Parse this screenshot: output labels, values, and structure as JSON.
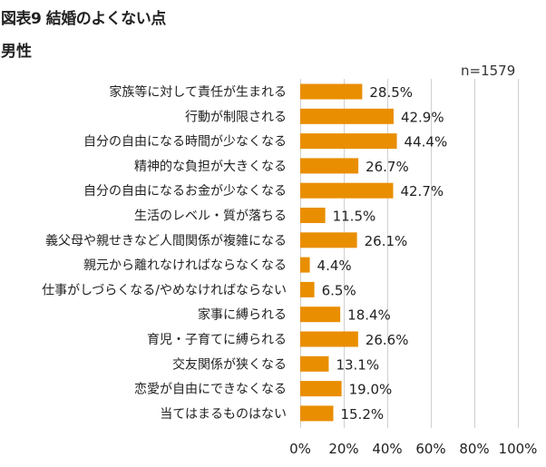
{
  "header": {
    "title": "図表9 結婚のよくない点",
    "subtitle": "男性"
  },
  "colors": {
    "bar": "#E98E00",
    "grid": "#D0D0D0"
  },
  "chart_data": {
    "type": "bar",
    "orientation": "horizontal",
    "title": "図表9 結婚のよくない点",
    "subtitle": "男性",
    "annotation": "n=1579",
    "categories": [
      "家族等に対して責任が生まれる",
      "行動が制限される",
      "自分の自由になる時間が少なくなる",
      "精神的な負担が大きくなる",
      "自分の自由になるお金が少なくなる",
      "生活のレベル・質が落ちる",
      "義父母や親せきなど人間関係が複雑になる",
      "親元から離れなければならなくなる",
      "仕事がしづらくなる/やめなければならない",
      "家事に縛られる",
      "育児・子育てに縛られる",
      "交友関係が狭くなる",
      "恋愛が自由にできなくなる",
      "当てはまるものはない"
    ],
    "values": [
      28.5,
      42.9,
      44.4,
      26.7,
      42.7,
      11.5,
      26.1,
      4.4,
      6.5,
      18.4,
      26.6,
      13.1,
      19.0,
      15.2
    ],
    "value_labels": [
      "28.5%",
      "42.9%",
      "44.4%",
      "26.7%",
      "42.7%",
      "11.5%",
      "26.1%",
      "4.4%",
      "6.5%",
      "18.4%",
      "26.6%",
      "13.1%",
      "19.0%",
      "15.2%"
    ],
    "xlim": [
      0,
      100
    ],
    "xticks": [
      "0%",
      "20%",
      "40%",
      "60%",
      "80%",
      "100%"
    ],
    "xtick_values": [
      0,
      20,
      40,
      60,
      80,
      100
    ],
    "grid": true,
    "xlabel": "",
    "ylabel": ""
  }
}
